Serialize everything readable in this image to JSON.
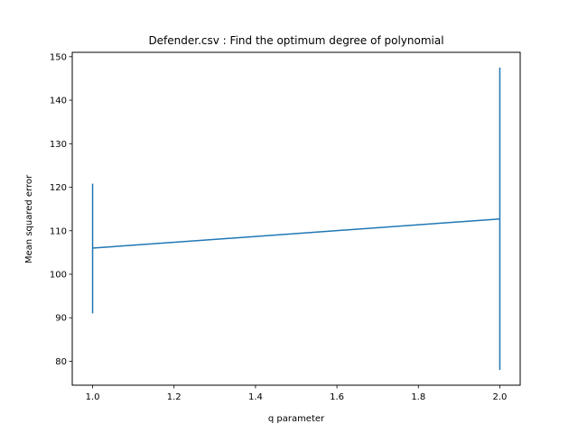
{
  "chart_data": {
    "type": "line",
    "title": "Defender.csv : Find the optimum degree of polynomial",
    "xlabel": "q parameter",
    "ylabel": "Mean squared error",
    "xlim": [
      0.95,
      2.05
    ],
    "ylim": [
      74.5,
      151.0
    ],
    "xticks": [
      1.0,
      1.2,
      1.4,
      1.6,
      1.8,
      2.0
    ],
    "xtick_labels": [
      "1.0",
      "1.2",
      "1.4",
      "1.6",
      "1.8",
      "2.0"
    ],
    "yticks": [
      80,
      90,
      100,
      110,
      120,
      130,
      140,
      150
    ],
    "ytick_labels": [
      "80",
      "90",
      "100",
      "110",
      "120",
      "130",
      "140",
      "150"
    ],
    "grid": false,
    "series": [
      {
        "color": "#1f77b4",
        "x": [
          1.0,
          2.0
        ],
        "y": [
          106.0,
          112.7
        ],
        "error_low": [
          91.0,
          78.0
        ],
        "error_high": [
          120.8,
          147.5
        ]
      }
    ]
  }
}
